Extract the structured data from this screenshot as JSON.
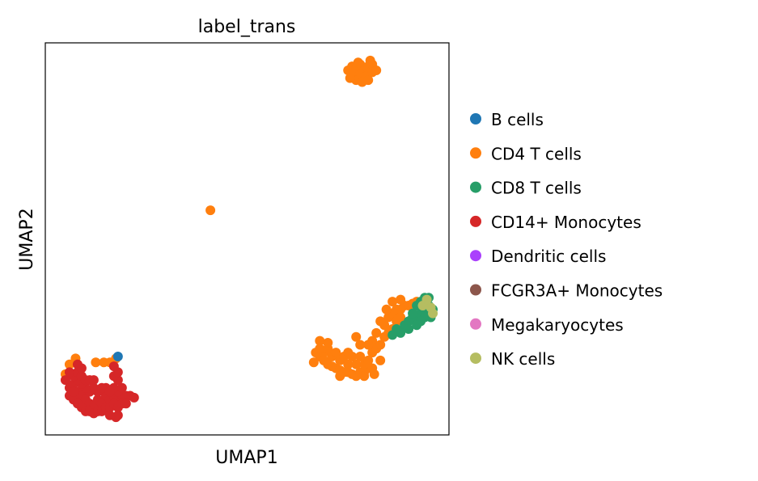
{
  "chart_data": {
    "type": "scatter",
    "title": "label_trans",
    "xlabel": "UMAP1",
    "ylabel": "UMAP2",
    "xlim": [
      0,
      100
    ],
    "ylim": [
      0,
      100
    ],
    "grid": false,
    "legend_placement": "right-outside",
    "categories": [
      {
        "name": "B cells",
        "color": "#1f77b4"
      },
      {
        "name": "CD4 T cells",
        "color": "#ff7f0e"
      },
      {
        "name": "CD8 T cells",
        "color": "#279e68"
      },
      {
        "name": "CD14+ Monocytes",
        "color": "#d62728"
      },
      {
        "name": "Dendritic cells",
        "color": "#aa40fc"
      },
      {
        "name": "FCGR3A+ Monocytes",
        "color": "#8c564b"
      },
      {
        "name": "Megakaryocytes",
        "color": "#e377c2"
      },
      {
        "name": "NK cells",
        "color": "#b5bd61"
      }
    ],
    "points": [
      [
        75,
        93,
        1
      ],
      [
        76,
        94,
        1
      ],
      [
        77,
        93.5,
        1
      ],
      [
        78,
        94.5,
        1
      ],
      [
        79,
        93,
        1
      ],
      [
        80,
        94,
        1
      ],
      [
        81,
        94.5,
        1
      ],
      [
        76.5,
        92,
        1
      ],
      [
        78,
        92,
        1
      ],
      [
        79.5,
        91.5,
        1
      ],
      [
        81,
        92.5,
        1
      ],
      [
        77,
        90.5,
        1
      ],
      [
        78.5,
        90,
        1
      ],
      [
        80,
        90.5,
        1
      ],
      [
        75.5,
        91,
        1
      ],
      [
        82,
        93,
        1
      ],
      [
        80.5,
        95.5,
        1
      ],
      [
        77.5,
        95,
        1
      ],
      [
        40.9,
        57.3,
        1
      ],
      [
        6,
        18,
        1
      ],
      [
        7.5,
        19.5,
        1
      ],
      [
        12.5,
        18.5,
        1
      ],
      [
        14.5,
        18.5,
        1
      ],
      [
        16,
        18.5,
        1
      ],
      [
        17.5,
        19.5,
        1
      ],
      [
        5,
        15.5,
        1
      ],
      [
        5,
        14,
        3
      ],
      [
        6,
        12,
        3
      ],
      [
        7,
        13,
        3
      ],
      [
        8,
        11,
        3
      ],
      [
        9,
        10,
        3
      ],
      [
        10,
        9,
        3
      ],
      [
        11,
        8,
        3
      ],
      [
        12,
        7,
        3
      ],
      [
        13,
        9,
        3
      ],
      [
        14,
        8,
        3
      ],
      [
        15,
        10,
        3
      ],
      [
        16,
        9,
        3
      ],
      [
        17,
        10,
        3
      ],
      [
        18,
        9,
        3
      ],
      [
        19,
        10,
        3
      ],
      [
        20,
        10,
        3
      ],
      [
        21,
        10,
        3
      ],
      [
        22,
        9.5,
        3
      ],
      [
        6,
        10,
        3
      ],
      [
        7,
        9,
        3
      ],
      [
        8,
        8,
        3
      ],
      [
        9,
        7,
        3
      ],
      [
        10,
        6,
        3
      ],
      [
        11,
        6,
        3
      ],
      [
        12,
        5.5,
        3
      ],
      [
        13,
        6,
        3
      ],
      [
        14,
        6,
        3
      ],
      [
        15,
        7,
        3
      ],
      [
        16,
        7,
        3
      ],
      [
        17,
        8,
        3
      ],
      [
        18,
        7,
        3
      ],
      [
        19,
        8,
        3
      ],
      [
        20,
        8,
        3
      ],
      [
        18,
        11,
        3
      ],
      [
        19,
        12,
        3
      ],
      [
        17,
        12,
        3
      ],
      [
        15,
        12,
        3
      ],
      [
        13,
        11,
        3
      ],
      [
        12,
        12,
        3
      ],
      [
        11,
        11,
        3
      ],
      [
        10,
        12,
        3
      ],
      [
        9,
        13,
        3
      ],
      [
        8,
        14,
        3
      ],
      [
        7,
        15,
        3
      ],
      [
        6,
        16,
        3
      ],
      [
        8,
        16,
        3
      ],
      [
        9,
        15,
        3
      ],
      [
        10,
        14,
        3
      ],
      [
        11,
        14,
        3
      ],
      [
        12,
        14,
        3
      ],
      [
        9,
        17,
        3
      ],
      [
        8,
        18,
        3
      ],
      [
        18,
        14,
        3
      ],
      [
        17,
        15,
        3
      ],
      [
        18,
        16,
        3
      ],
      [
        17.5,
        4.5,
        3
      ],
      [
        18,
        5,
        3
      ],
      [
        16,
        5,
        3
      ],
      [
        7,
        11,
        3
      ],
      [
        14,
        12,
        3
      ],
      [
        16,
        11,
        3
      ],
      [
        17,
        17.5,
        3
      ],
      [
        18,
        20,
        0
      ],
      [
        67,
        21,
        1
      ],
      [
        68,
        20,
        1
      ],
      [
        69,
        19,
        1
      ],
      [
        70,
        18,
        1
      ],
      [
        71,
        17.5,
        1
      ],
      [
        72,
        17,
        1
      ],
      [
        73,
        16.5,
        1
      ],
      [
        74,
        16,
        1
      ],
      [
        75,
        16,
        1
      ],
      [
        76,
        15.5,
        1
      ],
      [
        77,
        15,
        1
      ],
      [
        78,
        16,
        1
      ],
      [
        79,
        16,
        1
      ],
      [
        80,
        17,
        1
      ],
      [
        81,
        17,
        1
      ],
      [
        79,
        18,
        1
      ],
      [
        77,
        18,
        1
      ],
      [
        75,
        18,
        1
      ],
      [
        73,
        19,
        1
      ],
      [
        71,
        20,
        1
      ],
      [
        69,
        21,
        1
      ],
      [
        68,
        22,
        1
      ],
      [
        70,
        22,
        1
      ],
      [
        72,
        21,
        1
      ],
      [
        74,
        20,
        1
      ],
      [
        76,
        20,
        1
      ],
      [
        78,
        20,
        1
      ],
      [
        80,
        19,
        1
      ],
      [
        81,
        21,
        1
      ],
      [
        82,
        22,
        1
      ],
      [
        81,
        24,
        1
      ],
      [
        80,
        23,
        1
      ],
      [
        78,
        23,
        1
      ],
      [
        77,
        25,
        1
      ],
      [
        75,
        21,
        1
      ],
      [
        68,
        24,
        1
      ],
      [
        70,
        23.5,
        1
      ],
      [
        66.5,
        18.5,
        1
      ],
      [
        73,
        15,
        1
      ],
      [
        79,
        15,
        1
      ],
      [
        81.5,
        15.5,
        1
      ],
      [
        83,
        19,
        1
      ],
      [
        83,
        23,
        1
      ],
      [
        84,
        25,
        1
      ],
      [
        84,
        28,
        1
      ],
      [
        85,
        30,
        1
      ],
      [
        86,
        31,
        1
      ],
      [
        87,
        32,
        1
      ],
      [
        88,
        32,
        1
      ],
      [
        89,
        33,
        1
      ],
      [
        90,
        33,
        1
      ],
      [
        91,
        33.5,
        1
      ],
      [
        92,
        34,
        1
      ],
      [
        86,
        27,
        1
      ],
      [
        87,
        29,
        1
      ],
      [
        88,
        30,
        1
      ],
      [
        85,
        26,
        1
      ],
      [
        82,
        26,
        1
      ],
      [
        83,
        29,
        1
      ],
      [
        86,
        34,
        1
      ],
      [
        88,
        34.5,
        1
      ],
      [
        84.5,
        32,
        1
      ],
      [
        89,
        28,
        2
      ],
      [
        90,
        29,
        2
      ],
      [
        91,
        30,
        2
      ],
      [
        92,
        30,
        2
      ],
      [
        93,
        31,
        2
      ],
      [
        94,
        32,
        2
      ],
      [
        95,
        33,
        2
      ],
      [
        96,
        32,
        2
      ],
      [
        95,
        31,
        2
      ],
      [
        94,
        30,
        2
      ],
      [
        93,
        29,
        2
      ],
      [
        92,
        28,
        2
      ],
      [
        91,
        31,
        2
      ],
      [
        92,
        33,
        2
      ],
      [
        93,
        34,
        2
      ],
      [
        94,
        35,
        2
      ],
      [
        95,
        35,
        2
      ],
      [
        90,
        27,
        2
      ],
      [
        88,
        26,
        2
      ],
      [
        87,
        27,
        2
      ],
      [
        95.5,
        30,
        2
      ],
      [
        86,
        25.5,
        2
      ],
      [
        93.5,
        33,
        7
      ],
      [
        95.5,
        32.5,
        7
      ],
      [
        96,
        31,
        7
      ],
      [
        94.5,
        34.5,
        7
      ]
    ]
  }
}
